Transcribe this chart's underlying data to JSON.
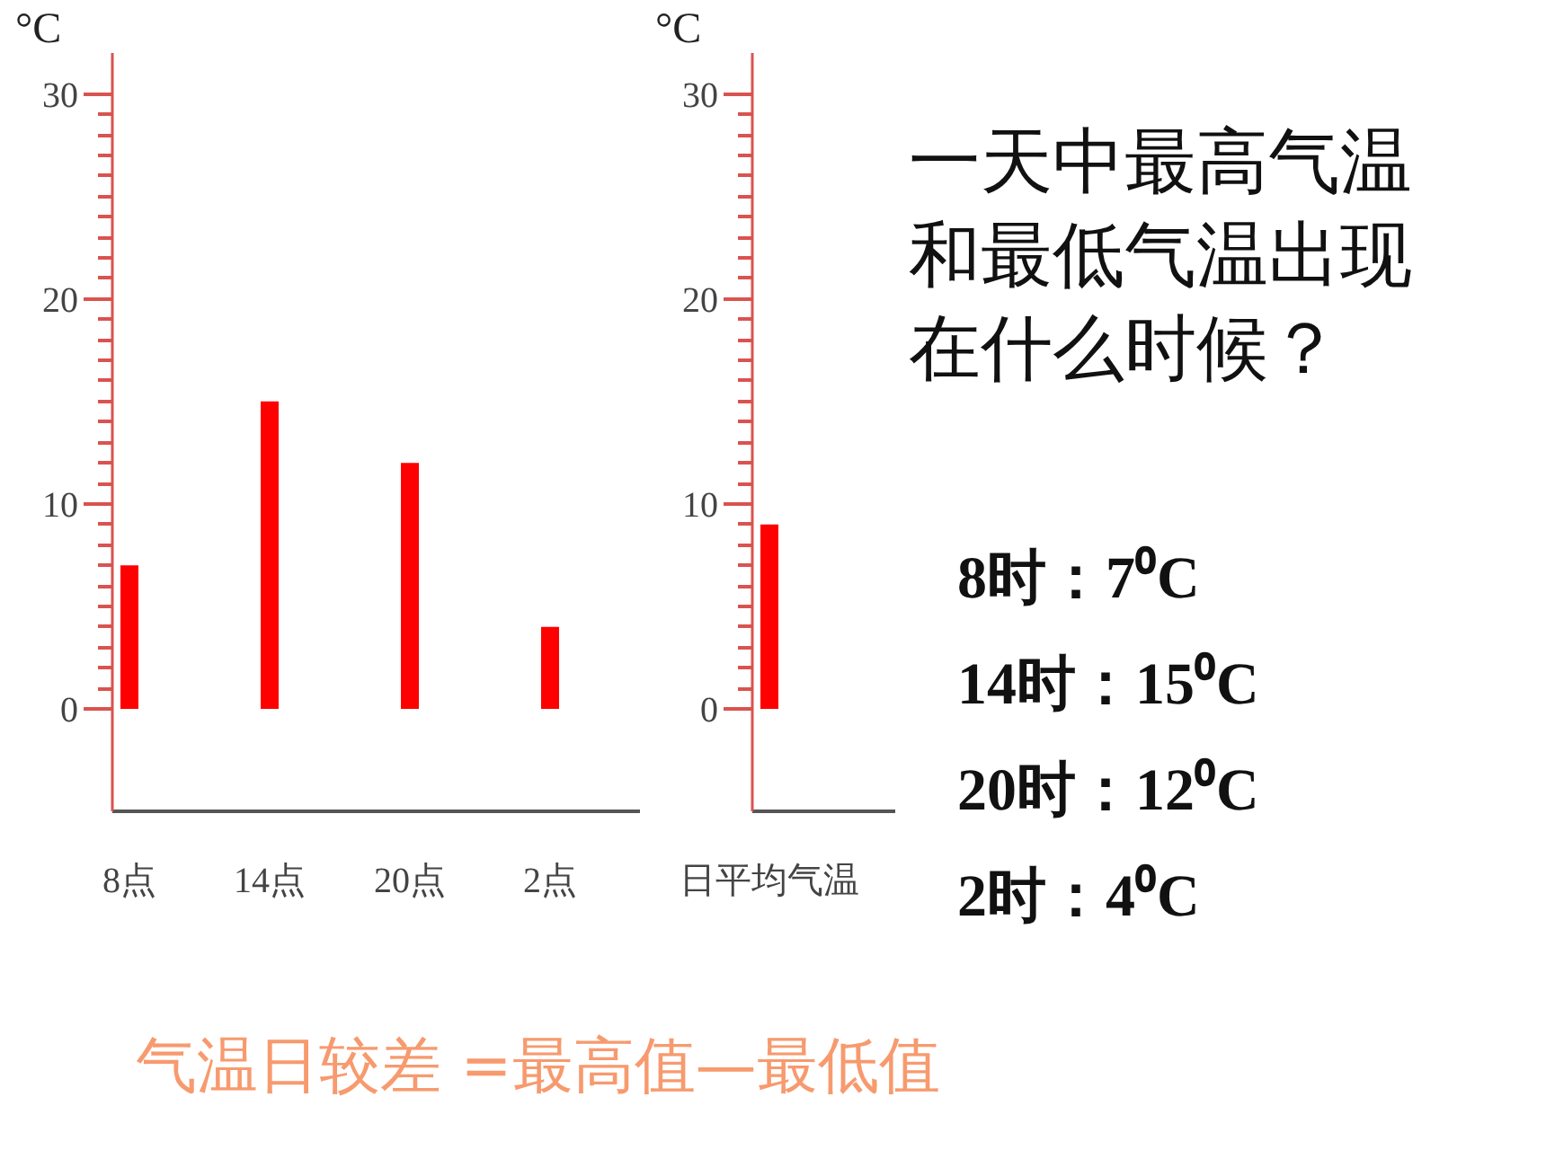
{
  "chart_data": [
    {
      "type": "bar",
      "ylabel": "°C",
      "categories": [
        "8点",
        "14点",
        "20点",
        "2点"
      ],
      "values": [
        7,
        15,
        12,
        4
      ],
      "color": "#ff0000",
      "ylim": [
        -5,
        32
      ],
      "yticks": [
        0,
        {
          "value": 1,
          "label": null
        },
        {
          "value": 2,
          "label": null
        },
        {
          "value": 3,
          "label": null
        },
        {
          "value": 4,
          "label": null
        },
        {
          "value": 5,
          "label": null
        },
        {
          "value": 6,
          "label": null
        },
        {
          "value": 7,
          "label": null
        },
        {
          "value": 8,
          "label": null
        },
        {
          "value": 9,
          "label": null
        },
        10,
        {
          "value": 11,
          "label": null
        },
        {
          "value": 12,
          "label": null
        },
        {
          "value": 13,
          "label": null
        },
        {
          "value": 14,
          "label": null
        },
        {
          "value": 15,
          "label": null
        },
        {
          "value": 16,
          "label": null
        },
        {
          "value": 17,
          "label": null
        },
        {
          "value": 18,
          "label": null
        },
        {
          "value": 19,
          "label": null
        },
        20,
        {
          "value": 21,
          "label": null
        },
        {
          "value": 22,
          "label": null
        },
        {
          "value": 23,
          "label": null
        },
        {
          "value": 24,
          "label": null
        },
        {
          "value": 25,
          "label": null
        },
        {
          "value": 26,
          "label": null
        },
        {
          "value": 27,
          "label": null
        },
        {
          "value": 28,
          "label": null
        },
        {
          "value": 29,
          "label": null
        },
        30
      ],
      "annotations": [
        "气温日较差 =最高值—最低值"
      ]
    },
    {
      "type": "bar",
      "ylabel": "°C",
      "categories": [
        "日平均气温"
      ],
      "values": [
        9
      ],
      "color": "#ff0000",
      "ylim": [
        -5,
        32
      ],
      "yticks": [
        0,
        {
          "value": 1,
          "label": null
        },
        {
          "value": 2,
          "label": null
        },
        {
          "value": 3,
          "label": null
        },
        {
          "value": 4,
          "label": null
        },
        {
          "value": 5,
          "label": null
        },
        {
          "value": 6,
          "label": null
        },
        {
          "value": 7,
          "label": null
        },
        {
          "value": 8,
          "label": null
        },
        {
          "value": 9,
          "label": null
        },
        10,
        {
          "value": 11,
          "label": null
        },
        {
          "value": 12,
          "label": null
        },
        {
          "value": 13,
          "label": null
        },
        {
          "value": 14,
          "label": null
        },
        {
          "value": 15,
          "label": null
        },
        {
          "value": 16,
          "label": null
        },
        {
          "value": 17,
          "label": null
        },
        {
          "value": 18,
          "label": null
        },
        {
          "value": 19,
          "label": null
        },
        20,
        {
          "value": 21,
          "label": null
        },
        {
          "value": 22,
          "label": null
        },
        {
          "value": 23,
          "label": null
        },
        {
          "value": 24,
          "label": null
        },
        {
          "value": 25,
          "label": null
        },
        {
          "value": 26,
          "label": null
        },
        {
          "value": 27,
          "label": null
        },
        {
          "value": 28,
          "label": null
        },
        {
          "value": 29,
          "label": null
        },
        30
      ]
    },
    {
      "type": "other",
      "title": "一天中最高气温和最低气温出现在什么时候？",
      "annotations": [
        "8时：7⁰C",
        "14时：15⁰C",
        "20时：12⁰C",
        "2时：4⁰C"
      ]
    }
  ]
}
